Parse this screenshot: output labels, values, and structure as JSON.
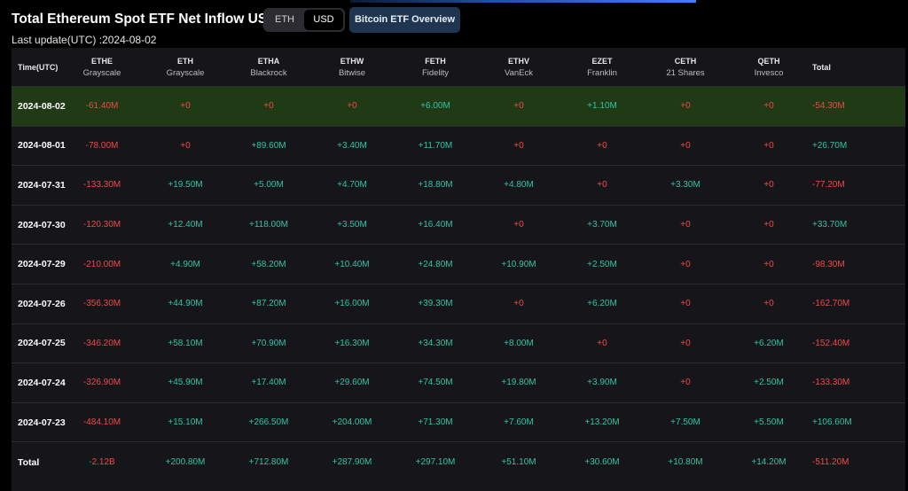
{
  "header": {
    "title": "Total Ethereum Spot ETF Net Inflow USD",
    "last_update": "Last update(UTC) :2024-08-02",
    "toggle": [
      {
        "label": "ETH",
        "active": false
      },
      {
        "label": "USD",
        "active": true
      }
    ],
    "btc_button": "Bitcoin ETF Overview"
  },
  "colors": {
    "positive": "#2ec4a4",
    "negative": "#f04848",
    "highlight_row": "#213a16",
    "button": "#1f3550"
  },
  "table": {
    "columns": [
      {
        "ticker": "Time(UTC)",
        "issuer": ""
      },
      {
        "ticker": "ETHE",
        "issuer": "Grayscale"
      },
      {
        "ticker": "ETH",
        "issuer": "Grayscale"
      },
      {
        "ticker": "ETHA",
        "issuer": "Blackrock"
      },
      {
        "ticker": "ETHW",
        "issuer": "Bitwise"
      },
      {
        "ticker": "FETH",
        "issuer": "Fidelity"
      },
      {
        "ticker": "ETHV",
        "issuer": "VanEck"
      },
      {
        "ticker": "EZET",
        "issuer": "Franklin"
      },
      {
        "ticker": "CETH",
        "issuer": "21 Shares"
      },
      {
        "ticker": "QETH",
        "issuer": "Invesco"
      },
      {
        "ticker": "Total",
        "issuer": ""
      }
    ],
    "rows": [
      {
        "date": "2024-08-02",
        "highlight": true,
        "values": [
          "-61.40M",
          "+0",
          "+0",
          "+0",
          "+6.00M",
          "+0",
          "+1.10M",
          "+0",
          "+0",
          "-54.30M"
        ]
      },
      {
        "date": "2024-08-01",
        "highlight": false,
        "values": [
          "-78.00M",
          "+0",
          "+89.60M",
          "+3.40M",
          "+11.70M",
          "+0",
          "+0",
          "+0",
          "+0",
          "+26.70M"
        ]
      },
      {
        "date": "2024-07-31",
        "highlight": false,
        "values": [
          "-133.30M",
          "+19.50M",
          "+5.00M",
          "+4.70M",
          "+18.80M",
          "+4.80M",
          "+0",
          "+3.30M",
          "+0",
          "-77.20M"
        ]
      },
      {
        "date": "2024-07-30",
        "highlight": false,
        "values": [
          "-120.30M",
          "+12.40M",
          "+118.00M",
          "+3.50M",
          "+16.40M",
          "+0",
          "+3.70M",
          "+0",
          "+0",
          "+33.70M"
        ]
      },
      {
        "date": "2024-07-29",
        "highlight": false,
        "values": [
          "-210.00M",
          "+4.90M",
          "+58.20M",
          "+10.40M",
          "+24.80M",
          "+10.90M",
          "+2.50M",
          "+0",
          "+0",
          "-98.30M"
        ]
      },
      {
        "date": "2024-07-26",
        "highlight": false,
        "values": [
          "-356.30M",
          "+44.90M",
          "+87.20M",
          "+16.00M",
          "+39.30M",
          "+0",
          "+6.20M",
          "+0",
          "+0",
          "-162.70M"
        ]
      },
      {
        "date": "2024-07-25",
        "highlight": false,
        "values": [
          "-346.20M",
          "+58.10M",
          "+70.90M",
          "+16.30M",
          "+34.30M",
          "+8.00M",
          "+0",
          "+0",
          "+6.20M",
          "-152.40M"
        ]
      },
      {
        "date": "2024-07-24",
        "highlight": false,
        "values": [
          "-326.90M",
          "+45.90M",
          "+17.40M",
          "+29.60M",
          "+74.50M",
          "+19.80M",
          "+3.90M",
          "+0",
          "+2.50M",
          "-133.30M"
        ]
      },
      {
        "date": "2024-07-23",
        "highlight": false,
        "values": [
          "-484.10M",
          "+15.10M",
          "+266.50M",
          "+204.00M",
          "+71.30M",
          "+7.60M",
          "+13.20M",
          "+7.50M",
          "+5.50M",
          "+106.60M"
        ]
      },
      {
        "date": "Total",
        "highlight": false,
        "values": [
          "-2.12B",
          "+200.80M",
          "+712.80M",
          "+287.90M",
          "+297.10M",
          "+51.10M",
          "+30.60M",
          "+10.80M",
          "+14.20M",
          "-511.20M"
        ]
      }
    ]
  }
}
